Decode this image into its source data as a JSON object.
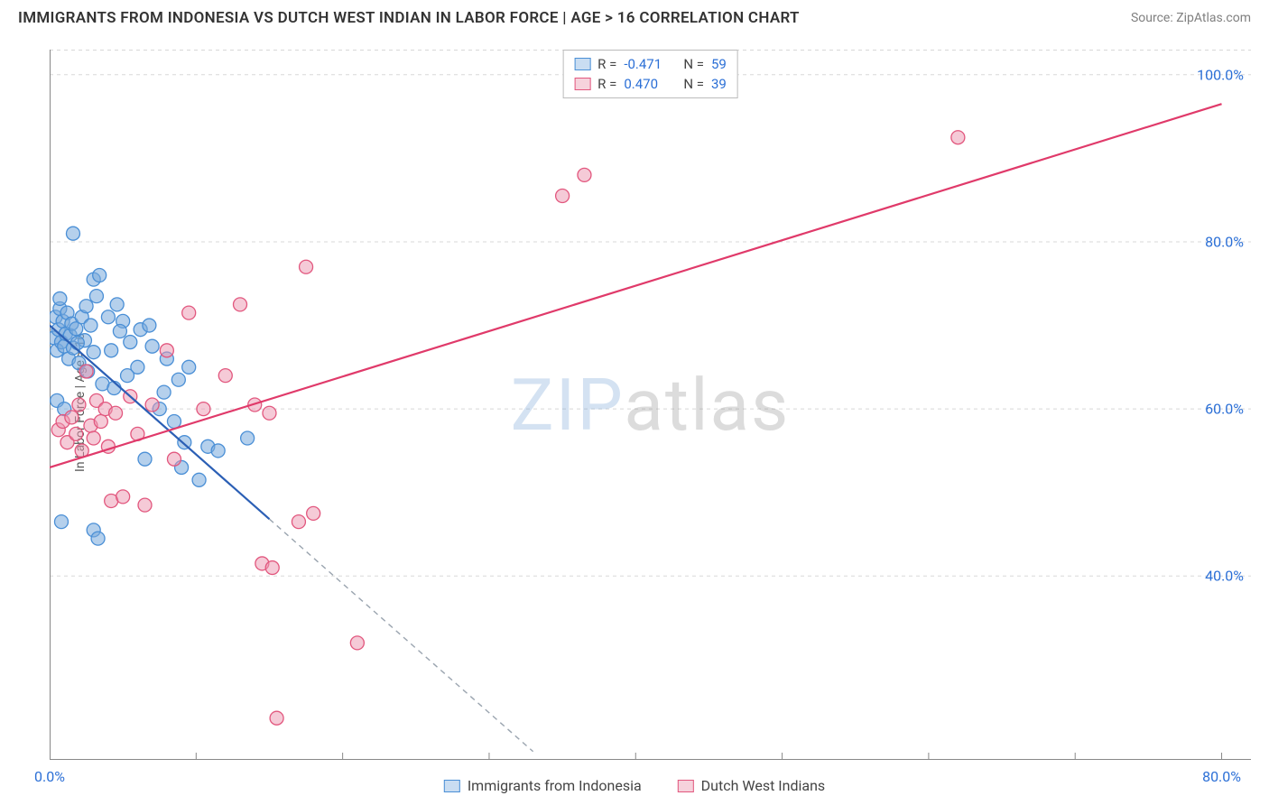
{
  "header": {
    "title": "IMMIGRANTS FROM INDONESIA VS DUTCH WEST INDIAN IN LABOR FORCE | AGE > 16 CORRELATION CHART",
    "source": "Source: ZipAtlas.com"
  },
  "axes": {
    "y_label": "In Labor Force | Age > 16",
    "y_ticks": [
      40.0,
      60.0,
      80.0,
      100.0
    ],
    "y_tick_labels": [
      "40.0%",
      "60.0%",
      "80.0%",
      "100.0%"
    ],
    "y_min": 18.0,
    "y_max": 103.0,
    "x_ticks": [
      0.0,
      80.0
    ],
    "x_tick_labels": [
      "0.0%",
      "80.0%"
    ],
    "x_minor_ticks": [
      0.0,
      10.0,
      20.0,
      30.0,
      40.0,
      50.0,
      60.0,
      70.0,
      80.0
    ],
    "x_min": 0.0,
    "x_max": 82.0
  },
  "grid_color": "#d8d8d8",
  "axis_color": "#888888",
  "background_color": "#ffffff",
  "legend_top": {
    "r_label": "R =",
    "n_label": "N =",
    "rows": [
      {
        "r": "-0.471",
        "n": "59",
        "fill": "#c9ddf2",
        "stroke": "#4a8fd6"
      },
      {
        "r": "0.470",
        "n": "39",
        "fill": "#f6d2dc",
        "stroke": "#e2577e"
      }
    ]
  },
  "legend_bottom": {
    "items": [
      {
        "label": "Immigrants from Indonesia",
        "fill": "#c9ddf2",
        "stroke": "#4a8fd6"
      },
      {
        "label": "Dutch West Indians",
        "fill": "#f6d2dc",
        "stroke": "#e2577e"
      }
    ]
  },
  "series": [
    {
      "name": "indonesia",
      "marker_fill": "rgba(120,170,220,0.55)",
      "marker_stroke": "#4a8fd6",
      "marker_radius": 7.5,
      "trend_color": "#2b5fb5",
      "trend_width": 2.2,
      "trend_solid_xrange": [
        0.0,
        15.0
      ],
      "trend_dashed_xrange": [
        15.0,
        33.0
      ],
      "trend": {
        "x0": 0.0,
        "y0": 70.0,
        "x1": 33.0,
        "y1": 19.0
      },
      "points": [
        [
          0.3,
          68.5
        ],
        [
          0.4,
          71.0
        ],
        [
          0.5,
          67.0
        ],
        [
          0.6,
          69.5
        ],
        [
          0.7,
          72.0
        ],
        [
          0.8,
          68.0
        ],
        [
          0.9,
          70.5
        ],
        [
          1.0,
          67.5
        ],
        [
          1.1,
          69.0
        ],
        [
          1.2,
          71.5
        ],
        [
          1.3,
          66.0
        ],
        [
          1.4,
          68.8
        ],
        [
          1.5,
          70.2
        ],
        [
          1.6,
          67.3
        ],
        [
          1.8,
          69.6
        ],
        [
          2.0,
          65.5
        ],
        [
          2.2,
          71.0
        ],
        [
          2.4,
          68.2
        ],
        [
          2.6,
          64.5
        ],
        [
          2.8,
          70.0
        ],
        [
          3.0,
          66.8
        ],
        [
          0.5,
          61.0
        ],
        [
          0.8,
          46.5
        ],
        [
          1.0,
          60.0
        ],
        [
          1.6,
          81.0
        ],
        [
          3.0,
          75.5
        ],
        [
          3.2,
          73.5
        ],
        [
          3.4,
          76.0
        ],
        [
          3.6,
          63.0
        ],
        [
          4.0,
          71.0
        ],
        [
          4.2,
          67.0
        ],
        [
          4.4,
          62.5
        ],
        [
          4.6,
          72.5
        ],
        [
          5.0,
          70.5
        ],
        [
          5.5,
          68.0
        ],
        [
          6.0,
          65.0
        ],
        [
          6.2,
          69.5
        ],
        [
          6.5,
          54.0
        ],
        [
          7.0,
          67.5
        ],
        [
          7.5,
          60.0
        ],
        [
          8.0,
          66.0
        ],
        [
          8.5,
          58.5
        ],
        [
          9.0,
          53.0
        ],
        [
          9.2,
          56.0
        ],
        [
          9.5,
          65.0
        ],
        [
          10.2,
          51.5
        ],
        [
          10.8,
          55.5
        ],
        [
          11.5,
          55.0
        ],
        [
          3.0,
          45.5
        ],
        [
          3.3,
          44.5
        ],
        [
          0.7,
          73.2
        ],
        [
          1.9,
          67.9
        ],
        [
          2.5,
          72.3
        ],
        [
          4.8,
          69.3
        ],
        [
          5.3,
          64.0
        ],
        [
          7.8,
          62.0
        ],
        [
          8.8,
          63.5
        ],
        [
          6.8,
          70.0
        ],
        [
          13.5,
          56.5
        ]
      ]
    },
    {
      "name": "dutch_west_indians",
      "marker_fill": "rgba(235,150,175,0.50)",
      "marker_stroke": "#e2577e",
      "marker_radius": 7.5,
      "trend_color": "#e03a6a",
      "trend_width": 2.2,
      "trend_solid_xrange": [
        0.0,
        80.0
      ],
      "trend": {
        "x0": 0.0,
        "y0": 53.0,
        "x1": 80.0,
        "y1": 96.5
      },
      "points": [
        [
          0.6,
          57.5
        ],
        [
          0.9,
          58.5
        ],
        [
          1.2,
          56.0
        ],
        [
          1.5,
          59.0
        ],
        [
          1.8,
          57.0
        ],
        [
          2.0,
          60.5
        ],
        [
          2.2,
          55.0
        ],
        [
          2.5,
          64.5
        ],
        [
          2.8,
          58.0
        ],
        [
          3.0,
          56.5
        ],
        [
          3.2,
          61.0
        ],
        [
          3.5,
          58.5
        ],
        [
          3.8,
          60.0
        ],
        [
          4.0,
          55.5
        ],
        [
          4.2,
          49.0
        ],
        [
          4.5,
          59.5
        ],
        [
          5.0,
          49.5
        ],
        [
          5.5,
          61.5
        ],
        [
          6.0,
          57.0
        ],
        [
          6.5,
          48.5
        ],
        [
          7.0,
          60.5
        ],
        [
          8.0,
          67.0
        ],
        [
          8.5,
          54.0
        ],
        [
          9.5,
          71.5
        ],
        [
          10.5,
          60.0
        ],
        [
          12.0,
          64.0
        ],
        [
          13.0,
          72.5
        ],
        [
          14.0,
          60.5
        ],
        [
          15.0,
          59.5
        ],
        [
          17.0,
          46.5
        ],
        [
          18.0,
          47.5
        ],
        [
          14.5,
          41.5
        ],
        [
          15.2,
          41.0
        ],
        [
          17.5,
          77.0
        ],
        [
          21.0,
          32.0
        ],
        [
          15.5,
          23.0
        ],
        [
          35.0,
          85.5
        ],
        [
          36.5,
          88.0
        ],
        [
          62.0,
          92.5
        ]
      ]
    }
  ],
  "watermark": {
    "zip": "ZIP",
    "atlas": "atlas"
  }
}
